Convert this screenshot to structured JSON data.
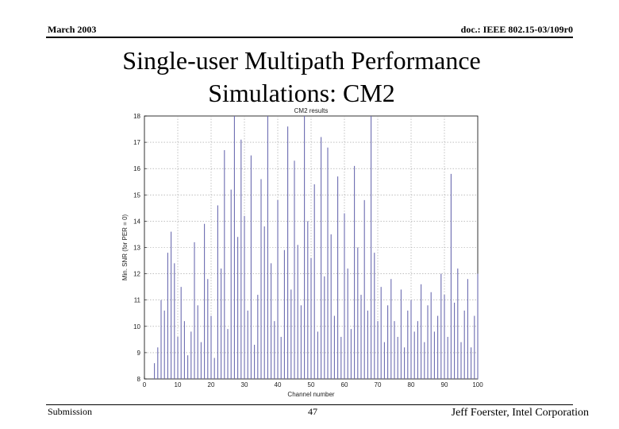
{
  "header": {
    "left": "March 2003",
    "right": "doc.: IEEE 802.15-03/109r0"
  },
  "slide": {
    "title_line1": "Single-user Multipath Performance",
    "title_line2": "Simulations: CM2"
  },
  "footer": {
    "left": "Submission",
    "page": "47",
    "right": "Jeff Foerster, Intel Corporation"
  },
  "colors": {
    "bars": "#6b6bb0",
    "grid": "#9a9a9a",
    "axis": "#000000"
  },
  "chart_data": {
    "type": "bar",
    "title": "CM2 results",
    "xlabel": "Channel number",
    "ylabel": "Min. SNR (for PER = 0)",
    "xlim": [
      0,
      100
    ],
    "ylim": [
      8,
      18
    ],
    "grid": true,
    "xticks": [
      "0",
      "10",
      "20",
      "30",
      "40",
      "50",
      "60",
      "70",
      "80",
      "90",
      "100"
    ],
    "yticks": [
      "8",
      "9",
      "10",
      "11",
      "12",
      "13",
      "14",
      "15",
      "16",
      "17",
      "18"
    ],
    "series": [
      {
        "x": [
          3,
          4,
          5,
          6,
          7,
          8,
          9,
          10,
          11,
          12,
          13,
          14,
          15,
          16,
          17,
          18,
          19,
          20,
          21,
          22,
          23,
          24,
          25,
          26,
          27,
          28,
          29,
          30,
          31,
          32,
          33,
          34,
          35,
          36,
          37,
          38,
          39,
          40,
          41,
          42,
          43,
          44,
          45,
          46,
          47,
          48,
          49,
          50,
          51,
          52,
          53,
          54,
          55,
          56,
          57,
          58,
          59,
          60,
          61,
          62,
          63,
          64,
          65,
          66,
          67,
          68,
          69,
          70,
          71,
          72,
          73,
          74,
          75,
          76,
          77,
          78,
          79,
          80,
          81,
          82,
          83,
          84,
          85,
          86,
          87,
          88,
          89,
          90,
          91,
          92,
          93,
          94,
          95,
          96,
          97,
          98,
          99,
          100
        ],
        "values": [
          8.6,
          9.2,
          11.0,
          10.6,
          12.8,
          13.6,
          12.4,
          9.6,
          11.5,
          10.2,
          8.9,
          9.8,
          13.2,
          10.8,
          9.4,
          13.9,
          11.8,
          10.4,
          8.8,
          14.6,
          12.2,
          16.7,
          9.9,
          15.2,
          18.0,
          13.4,
          17.1,
          14.2,
          10.6,
          16.5,
          9.3,
          11.2,
          15.6,
          13.8,
          18.0,
          12.4,
          10.2,
          14.8,
          9.6,
          12.9,
          17.6,
          11.4,
          16.3,
          13.1,
          10.8,
          18.0,
          14.0,
          12.6,
          15.4,
          9.8,
          17.2,
          11.9,
          16.8,
          13.5,
          10.4,
          15.7,
          9.6,
          14.3,
          12.2,
          9.9,
          16.1,
          13.0,
          11.2,
          14.8,
          10.6,
          18.0,
          12.8,
          10.2,
          11.5,
          9.4,
          10.8,
          11.8,
          10.2,
          9.6,
          11.4,
          9.2,
          10.6,
          11.0,
          9.8,
          10.2,
          11.6,
          9.4,
          10.8,
          11.3,
          9.8,
          10.4,
          12.0,
          11.2,
          9.6,
          15.8,
          10.9,
          12.2,
          9.4,
          10.6,
          11.8,
          9.2,
          10.4,
          12.0
        ]
      }
    ]
  }
}
